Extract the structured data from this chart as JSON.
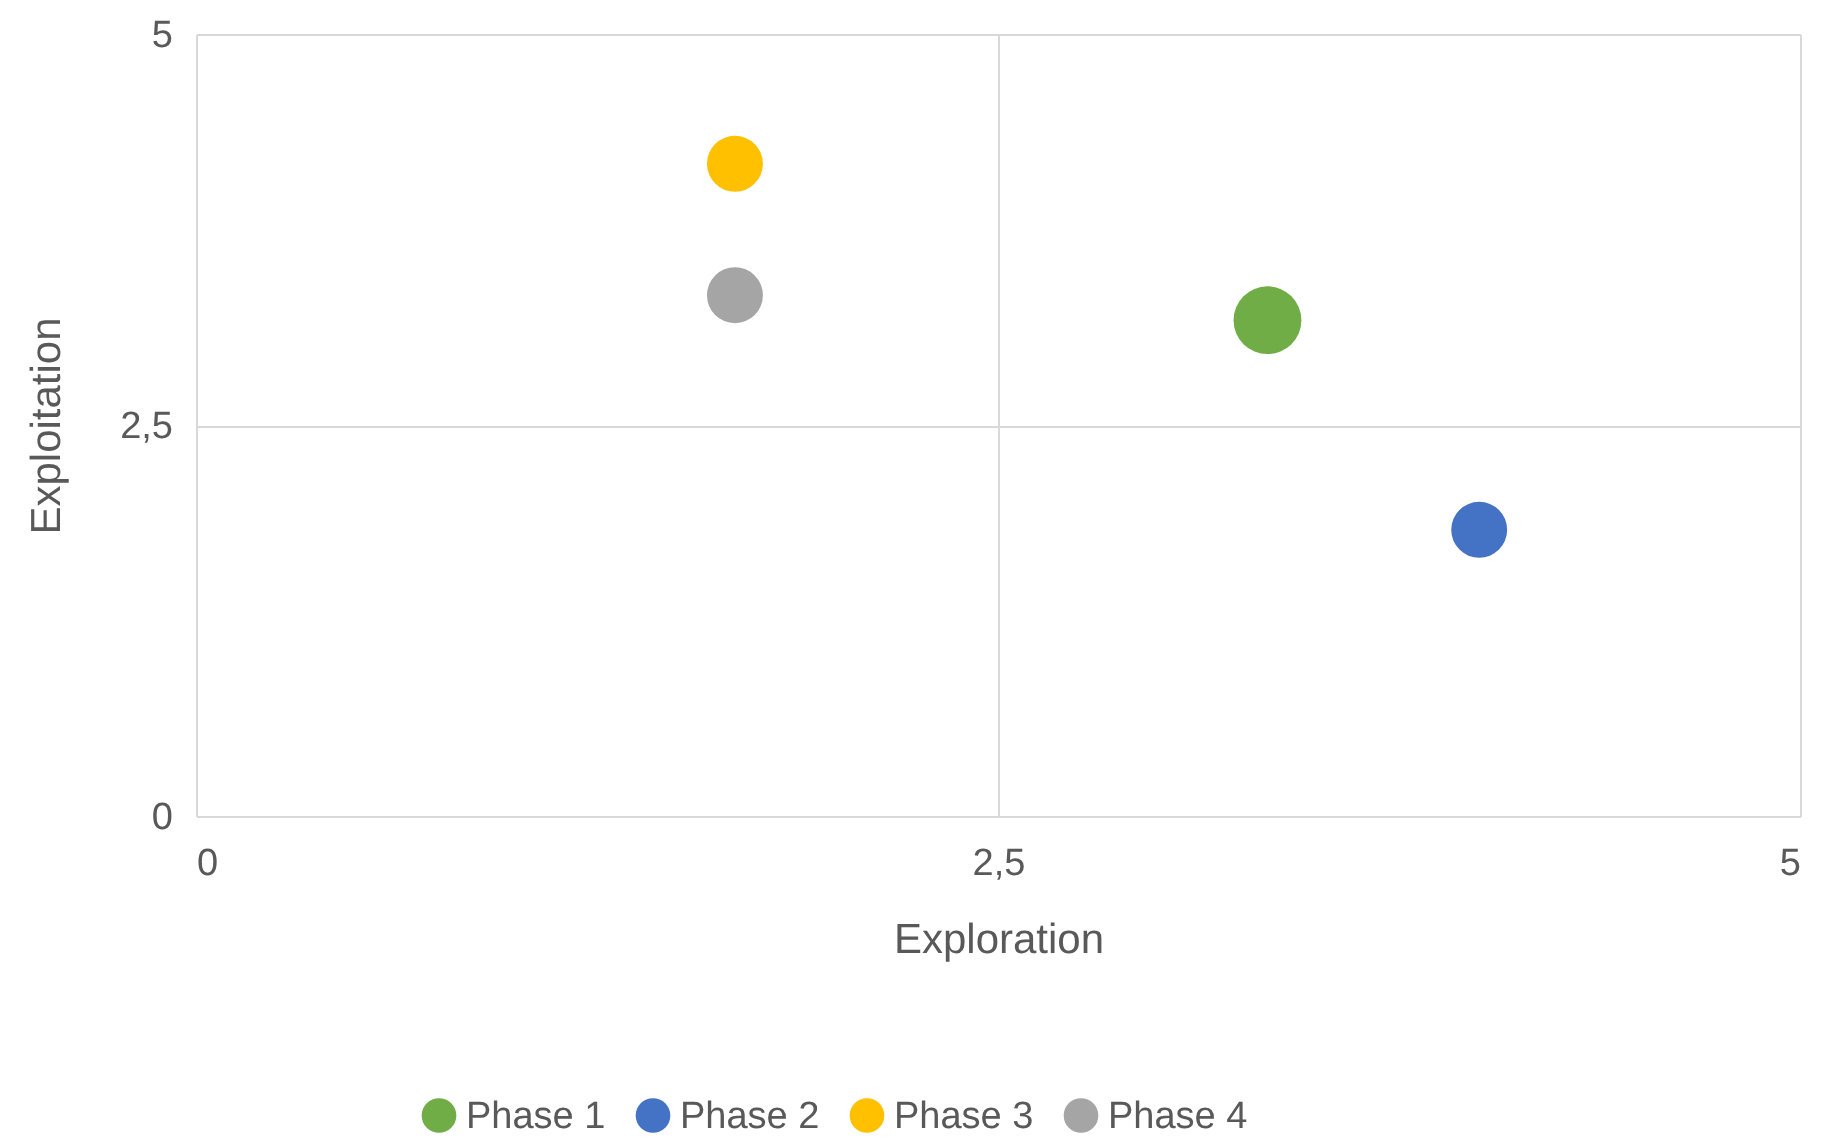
{
  "chart_data": {
    "type": "bubble",
    "xlabel": "Exploration",
    "ylabel": "Exploitation",
    "xlim": [
      0,
      5
    ],
    "ylim": [
      0,
      5
    ],
    "xticks": [
      0,
      {
        "value": 2.5,
        "label": "2,5"
      },
      5
    ],
    "yticks": [
      0,
      {
        "value": 2.5,
        "label": "2,5"
      },
      5
    ],
    "grid": true,
    "legend": "bottom",
    "series": [
      {
        "name": "Phase 1",
        "color": "#70ad47",
        "x": [
          3.34
        ],
        "values": [
          3.17
        ],
        "sizes": [
          1
        ]
      },
      {
        "name": "Phase 2",
        "color": "#4472c4",
        "x": [
          4.0
        ],
        "values": [
          1.83
        ],
        "sizes": [
          0.68
        ]
      },
      {
        "name": "Phase 3",
        "color": "#ffc000",
        "x": [
          1.68
        ],
        "values": [
          4.17
        ],
        "sizes": [
          0.68
        ]
      },
      {
        "name": "Phase 4",
        "color": "#a5a5a5",
        "x": [
          1.68
        ],
        "values": [
          3.33
        ],
        "sizes": [
          0.68
        ]
      }
    ]
  }
}
